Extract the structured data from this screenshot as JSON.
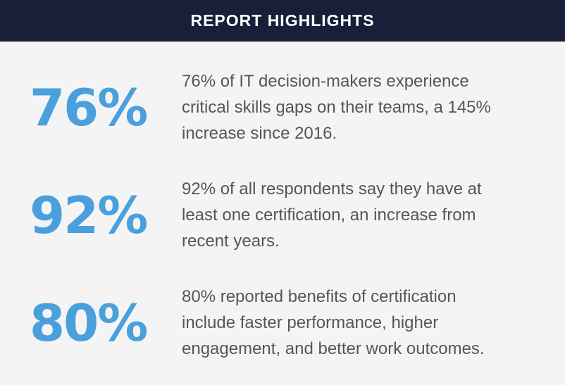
{
  "header": {
    "title": "REPORT HIGHLIGHTS"
  },
  "highlights": [
    {
      "stat": "76%",
      "lines": [
        "76% of IT decision-makers experience",
        "critical skills gaps on their teams, a 145%",
        "increase since 2016."
      ]
    },
    {
      "stat": "92%",
      "lines": [
        "92% of all respondents say they have at",
        "least one certification, an increase from",
        "recent years."
      ]
    },
    {
      "stat": "80%",
      "lines": [
        "80% reported benefits of certification",
        "include faster performance, higher",
        "engagement, and better work outcomes."
      ]
    }
  ],
  "colors": {
    "header_bg": "#181f38",
    "header_text": "#ffffff",
    "page_bg": "#f4f4f5",
    "stat_blue": "#4aa0dc",
    "body_text": "#54565b"
  }
}
